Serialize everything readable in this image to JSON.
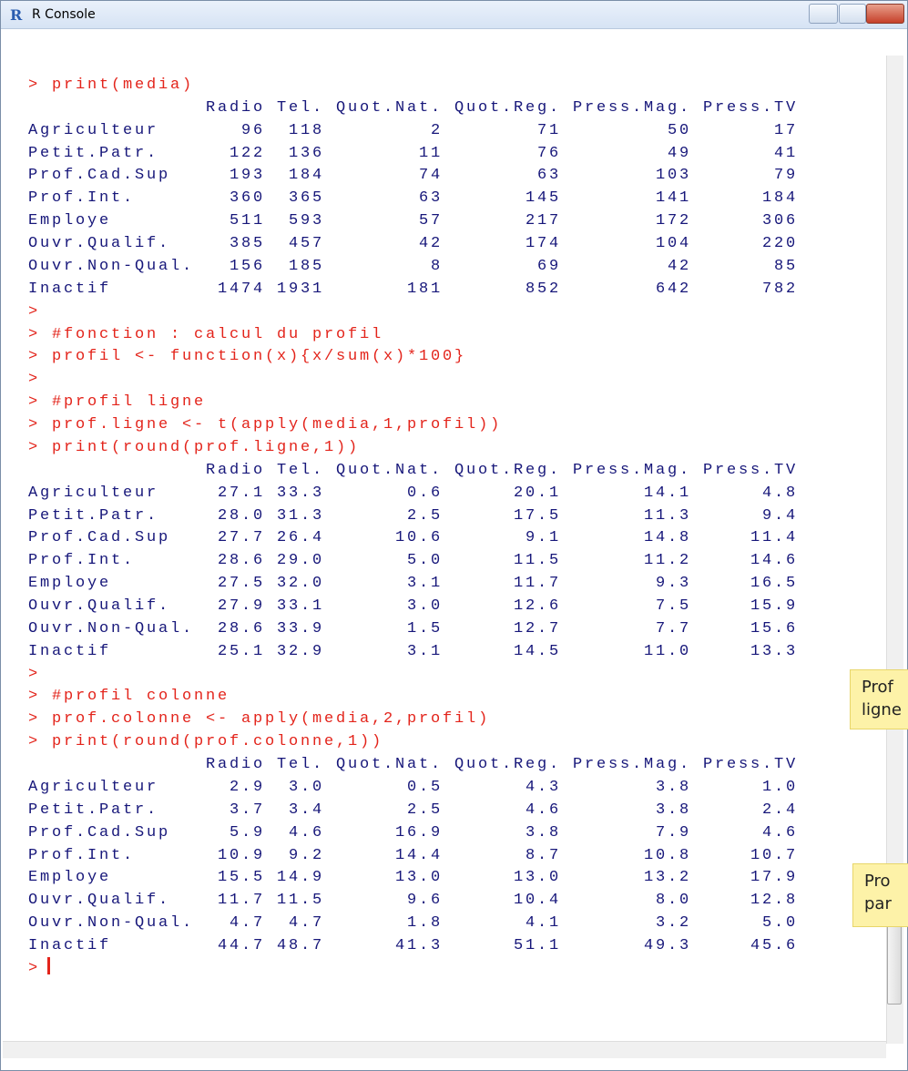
{
  "window": {
    "title": "R Console"
  },
  "console": [
    {
      "type": "cmd",
      "text": "> print(media)"
    },
    {
      "type": "table",
      "header": [
        "Radio",
        "Tel.",
        "Quot.Nat.",
        "Quot.Reg.",
        "Press.Mag.",
        "Press.TV"
      ],
      "rows": [
        {
          "name": "Agriculteur",
          "cells": [
            "96",
            "118",
            "2",
            "71",
            "50",
            "17"
          ]
        },
        {
          "name": "Petit.Patr.",
          "cells": [
            "122",
            "136",
            "11",
            "76",
            "49",
            "41"
          ]
        },
        {
          "name": "Prof.Cad.Sup",
          "cells": [
            "193",
            "184",
            "74",
            "63",
            "103",
            "79"
          ]
        },
        {
          "name": "Prof.Int.",
          "cells": [
            "360",
            "365",
            "63",
            "145",
            "141",
            "184"
          ]
        },
        {
          "name": "Employe",
          "cells": [
            "511",
            "593",
            "57",
            "217",
            "172",
            "306"
          ]
        },
        {
          "name": "Ouvr.Qualif.",
          "cells": [
            "385",
            "457",
            "42",
            "174",
            "104",
            "220"
          ]
        },
        {
          "name": "Ouvr.Non-Qual.",
          "cells": [
            "156",
            "185",
            "8",
            "69",
            "42",
            "85"
          ]
        },
        {
          "name": "Inactif",
          "cells": [
            "1474",
            "1931",
            "181",
            "852",
            "642",
            "782"
          ]
        }
      ]
    },
    {
      "type": "cmd",
      "text": ">"
    },
    {
      "type": "cmd",
      "text": "> #fonction : calcul du profil"
    },
    {
      "type": "cmd",
      "text": "> profil <- function(x){x/sum(x)*100}"
    },
    {
      "type": "cmd",
      "text": ">"
    },
    {
      "type": "cmd",
      "text": "> #profil ligne"
    },
    {
      "type": "cmd",
      "text": "> prof.ligne <- t(apply(media,1,profil))"
    },
    {
      "type": "cmd",
      "text": "> print(round(prof.ligne,1))"
    },
    {
      "type": "table",
      "header": [
        "Radio",
        "Tel.",
        "Quot.Nat.",
        "Quot.Reg.",
        "Press.Mag.",
        "Press.TV"
      ],
      "rows": [
        {
          "name": "Agriculteur",
          "cells": [
            "27.1",
            "33.3",
            "0.6",
            "20.1",
            "14.1",
            "4.8"
          ]
        },
        {
          "name": "Petit.Patr.",
          "cells": [
            "28.0",
            "31.3",
            "2.5",
            "17.5",
            "11.3",
            "9.4"
          ]
        },
        {
          "name": "Prof.Cad.Sup",
          "cells": [
            "27.7",
            "26.4",
            "10.6",
            "9.1",
            "14.8",
            "11.4"
          ]
        },
        {
          "name": "Prof.Int.",
          "cells": [
            "28.6",
            "29.0",
            "5.0",
            "11.5",
            "11.2",
            "14.6"
          ]
        },
        {
          "name": "Employe",
          "cells": [
            "27.5",
            "32.0",
            "3.1",
            "11.7",
            "9.3",
            "16.5"
          ]
        },
        {
          "name": "Ouvr.Qualif.",
          "cells": [
            "27.9",
            "33.1",
            "3.0",
            "12.6",
            "7.5",
            "15.9"
          ]
        },
        {
          "name": "Ouvr.Non-Qual.",
          "cells": [
            "28.6",
            "33.9",
            "1.5",
            "12.7",
            "7.7",
            "15.6"
          ]
        },
        {
          "name": "Inactif",
          "cells": [
            "25.1",
            "32.9",
            "3.1",
            "14.5",
            "11.0",
            "13.3"
          ]
        }
      ]
    },
    {
      "type": "cmd",
      "text": ">"
    },
    {
      "type": "cmd",
      "text": "> #profil colonne"
    },
    {
      "type": "cmd",
      "text": "> prof.colonne <- apply(media,2,profil)"
    },
    {
      "type": "cmd",
      "text": "> print(round(prof.colonne,1))"
    },
    {
      "type": "table",
      "header": [
        "Radio",
        "Tel.",
        "Quot.Nat.",
        "Quot.Reg.",
        "Press.Mag.",
        "Press.TV"
      ],
      "rows": [
        {
          "name": "Agriculteur",
          "cells": [
            "2.9",
            "3.0",
            "0.5",
            "4.3",
            "3.8",
            "1.0"
          ]
        },
        {
          "name": "Petit.Patr.",
          "cells": [
            "3.7",
            "3.4",
            "2.5",
            "4.6",
            "3.8",
            "2.4"
          ]
        },
        {
          "name": "Prof.Cad.Sup",
          "cells": [
            "5.9",
            "4.6",
            "16.9",
            "3.8",
            "7.9",
            "4.6"
          ]
        },
        {
          "name": "Prof.Int.",
          "cells": [
            "10.9",
            "9.2",
            "14.4",
            "8.7",
            "10.8",
            "10.7"
          ]
        },
        {
          "name": "Employe",
          "cells": [
            "15.5",
            "14.9",
            "13.0",
            "13.0",
            "13.2",
            "17.9"
          ]
        },
        {
          "name": "Ouvr.Qualif.",
          "cells": [
            "11.7",
            "11.5",
            "9.6",
            "10.4",
            "8.0",
            "12.8"
          ]
        },
        {
          "name": "Ouvr.Non-Qual.",
          "cells": [
            "4.7",
            "4.7",
            "1.8",
            "4.1",
            "3.2",
            "5.0"
          ]
        },
        {
          "name": "Inactif",
          "cells": [
            "44.7",
            "48.7",
            "41.3",
            "51.1",
            "49.3",
            "45.6"
          ]
        }
      ]
    },
    {
      "type": "prompt",
      "text": ">"
    }
  ],
  "callouts": [
    {
      "lines": [
        "Prof",
        "ligne"
      ]
    },
    {
      "lines": [
        "Pro",
        "par"
      ]
    }
  ]
}
